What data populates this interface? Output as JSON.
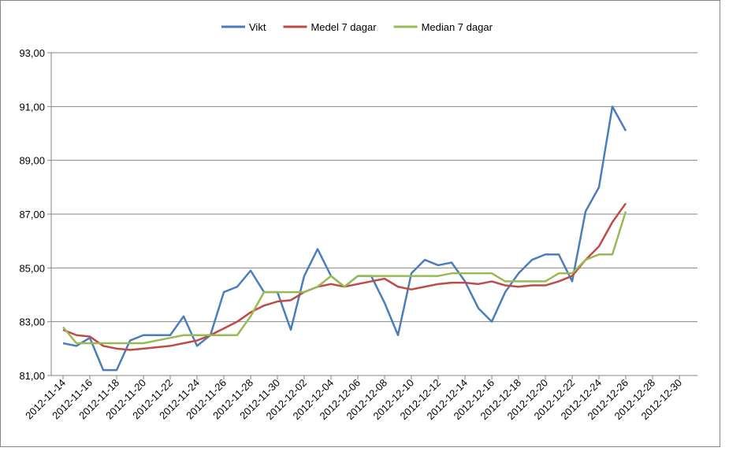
{
  "chart_data": {
    "type": "line",
    "x": [
      "2012-11-14",
      "2012-11-15",
      "2012-11-16",
      "2012-11-17",
      "2012-11-18",
      "2012-11-19",
      "2012-11-20",
      "2012-11-21",
      "2012-11-22",
      "2012-11-23",
      "2012-11-24",
      "2012-11-25",
      "2012-11-26",
      "2012-11-27",
      "2012-11-28",
      "2012-11-29",
      "2012-11-30",
      "2012-12-01",
      "2012-12-02",
      "2012-12-03",
      "2012-12-04",
      "2012-12-05",
      "2012-12-06",
      "2012-12-07",
      "2012-12-08",
      "2012-12-09",
      "2012-12-10",
      "2012-12-11",
      "2012-12-12",
      "2012-12-13",
      "2012-12-14",
      "2012-12-15",
      "2012-12-16",
      "2012-12-17",
      "2012-12-18",
      "2012-12-19",
      "2012-12-20",
      "2012-12-21",
      "2012-12-22",
      "2012-12-23",
      "2012-12-24",
      "2012-12-25",
      "2012-12-26"
    ],
    "series": [
      {
        "name": "Vikt",
        "color": "#4a7ebb",
        "values": [
          82.2,
          82.1,
          82.4,
          81.2,
          81.2,
          82.3,
          82.5,
          82.5,
          82.5,
          83.2,
          82.1,
          82.5,
          84.1,
          84.3,
          84.9,
          84.1,
          84.1,
          82.7,
          84.7,
          85.7,
          84.7,
          84.3,
          84.7,
          84.7,
          83.7,
          82.5,
          84.8,
          85.3,
          85.1,
          85.2,
          84.5,
          83.5,
          83.0,
          84.1,
          84.8,
          85.3,
          85.5,
          85.5,
          84.5,
          87.1,
          88.0,
          91.0,
          90.1
        ]
      },
      {
        "name": "Medel 7 dagar",
        "color": "#be4b48",
        "values": [
          82.7,
          82.5,
          82.45,
          82.1,
          82.0,
          81.95,
          82.0,
          82.05,
          82.1,
          82.2,
          82.3,
          82.5,
          82.75,
          83.0,
          83.35,
          83.6,
          83.75,
          83.8,
          84.1,
          84.3,
          84.4,
          84.3,
          84.4,
          84.5,
          84.6,
          84.3,
          84.2,
          84.3,
          84.4,
          84.45,
          84.45,
          84.4,
          84.5,
          84.35,
          84.3,
          84.35,
          84.35,
          84.5,
          84.7,
          85.3,
          85.8,
          86.7,
          87.4
        ]
      },
      {
        "name": "Median 7 dagar",
        "color": "#98b954",
        "values": [
          82.8,
          82.2,
          82.2,
          82.2,
          82.2,
          82.2,
          82.2,
          82.3,
          82.4,
          82.5,
          82.5,
          82.5,
          82.5,
          82.5,
          83.2,
          84.1,
          84.1,
          84.1,
          84.1,
          84.3,
          84.7,
          84.3,
          84.7,
          84.7,
          84.7,
          84.7,
          84.7,
          84.7,
          84.7,
          84.8,
          84.8,
          84.8,
          84.8,
          84.5,
          84.5,
          84.5,
          84.5,
          84.8,
          84.8,
          85.3,
          85.5,
          85.5,
          87.1
        ]
      }
    ],
    "xlim": [
      "2012-11-14",
      "2012-12-30"
    ],
    "xticks": [
      "2012-11-14",
      "2012-11-16",
      "2012-11-18",
      "2012-11-20",
      "2012-11-22",
      "2012-11-24",
      "2012-11-26",
      "2012-11-28",
      "2012-11-30",
      "2012-12-02",
      "2012-12-04",
      "2012-12-06",
      "2012-12-08",
      "2012-12-10",
      "2012-12-12",
      "2012-12-14",
      "2012-12-16",
      "2012-12-18",
      "2012-12-20",
      "2012-12-22",
      "2012-12-24",
      "2012-12-26",
      "2012-12-28",
      "2012-12-30"
    ],
    "ylim": [
      81,
      93
    ],
    "yticks": [
      {
        "value": 81,
        "label": "81,00"
      },
      {
        "value": 83,
        "label": "83,00"
      },
      {
        "value": 85,
        "label": "85,00"
      },
      {
        "value": 87,
        "label": "87,00"
      },
      {
        "value": 89,
        "label": "89,00"
      },
      {
        "value": 91,
        "label": "91,00"
      },
      {
        "value": 93,
        "label": "93,00"
      }
    ],
    "grid": true,
    "legend": "top"
  }
}
